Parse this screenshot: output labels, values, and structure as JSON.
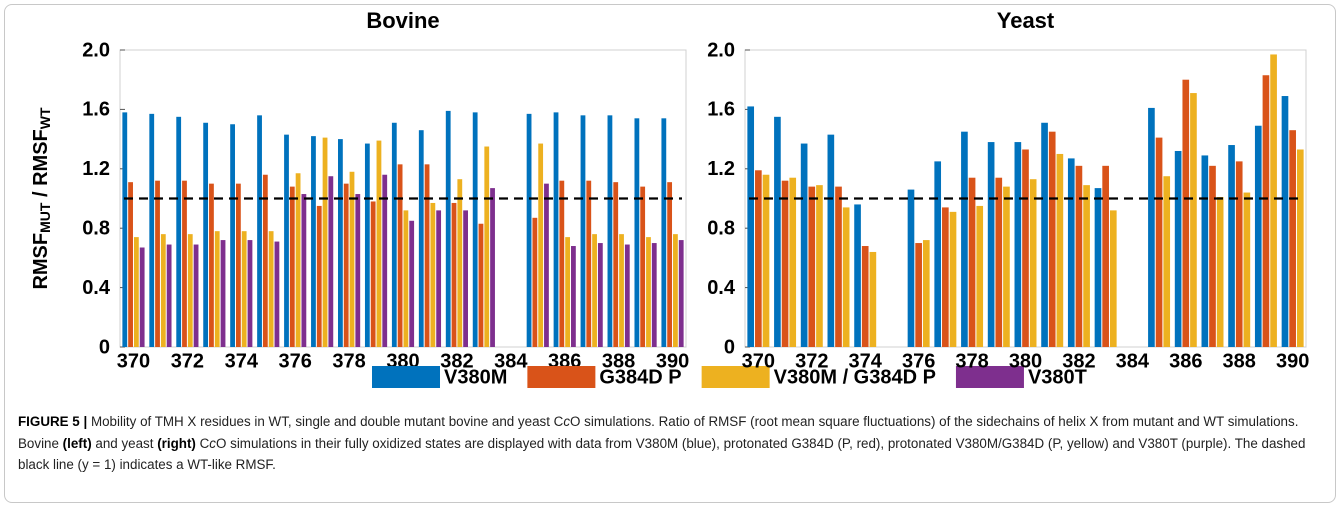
{
  "chart_data": [
    {
      "type": "bar",
      "title": "Bovine",
      "ylabel": [
        "RMSF",
        "MUT",
        " / RMSF",
        "WT"
      ],
      "categories": [
        370,
        null,
        372,
        null,
        374,
        null,
        376,
        null,
        378,
        null,
        380,
        null,
        382,
        null,
        384,
        null,
        386,
        null,
        388,
        null,
        390
      ],
      "series": [
        {
          "name": "V380M",
          "color": "#0072BD",
          "values": [
            1.58,
            1.57,
            1.55,
            1.51,
            1.5,
            1.56,
            1.43,
            1.42,
            1.4,
            1.37,
            1.51,
            1.46,
            1.59,
            1.58,
            null,
            1.57,
            1.58,
            1.56,
            1.56,
            1.54,
            1.54
          ]
        },
        {
          "name": "G384D P",
          "color": "#D95319",
          "values": [
            1.11,
            1.12,
            1.12,
            1.1,
            1.1,
            1.16,
            1.08,
            0.95,
            1.1,
            0.98,
            1.23,
            1.23,
            0.97,
            0.83,
            null,
            0.87,
            1.12,
            1.12,
            1.11,
            1.08,
            1.11
          ]
        },
        {
          "name": "V380M / G384D P",
          "color": "#EDB120",
          "values": [
            0.74,
            0.76,
            0.76,
            0.78,
            0.78,
            0.78,
            1.17,
            1.41,
            1.18,
            1.39,
            0.92,
            0.97,
            1.13,
            1.35,
            null,
            1.37,
            0.74,
            0.76,
            0.76,
            0.74,
            0.76
          ]
        },
        {
          "name": "V380T",
          "color": "#7E2F8E",
          "values": [
            0.67,
            0.69,
            0.69,
            0.72,
            0.72,
            0.71,
            1.03,
            1.15,
            1.03,
            1.16,
            0.85,
            0.92,
            0.92,
            1.07,
            null,
            1.1,
            0.68,
            0.7,
            0.69,
            0.7,
            0.72
          ]
        }
      ],
      "ylim": [
        0,
        2
      ],
      "yticks": [
        0,
        0.4,
        0.8,
        1.2,
        1.6,
        {
          "value": 2,
          "label": "2.0"
        }
      ],
      "reference_line": 1,
      "legend": "bottom"
    },
    {
      "type": "bar",
      "title": "Yeast",
      "categories": [
        370,
        null,
        372,
        null,
        374,
        null,
        376,
        null,
        378,
        null,
        380,
        null,
        382,
        null,
        384,
        null,
        386,
        null,
        388,
        null,
        390
      ],
      "series": [
        {
          "color": "#0072BD",
          "values": [
            1.62,
            1.55,
            1.37,
            1.43,
            0.96,
            null,
            1.06,
            1.25,
            1.45,
            1.38,
            1.38,
            1.51,
            1.27,
            1.07,
            null,
            1.61,
            1.32,
            1.29,
            1.36,
            1.49,
            1.69
          ]
        },
        {
          "color": "#D95319",
          "values": [
            1.19,
            1.12,
            1.08,
            1.08,
            0.68,
            null,
            0.7,
            0.94,
            1.14,
            1.14,
            1.33,
            1.45,
            1.22,
            1.22,
            null,
            1.41,
            1.8,
            1.22,
            1.25,
            1.83,
            1.46
          ]
        },
        {
          "color": "#EDB120",
          "values": [
            1.16,
            1.14,
            1.09,
            0.94,
            0.64,
            null,
            0.72,
            0.91,
            0.95,
            1.08,
            1.13,
            1.3,
            1.09,
            0.92,
            null,
            1.15,
            1.71,
            1.01,
            1.04,
            1.97,
            1.33
          ]
        }
      ],
      "ylim": [
        0,
        2
      ],
      "yticks": [
        0,
        0.4,
        0.8,
        1.2,
        1.6,
        {
          "value": 2,
          "label": "2.0"
        }
      ],
      "reference_line": 1
    }
  ],
  "caption": [
    {
      "text": "FIGURE 5 | ",
      "style": "bold"
    },
    {
      "text": "Mobility of TMH X residues in WT, single and double mutant bovine and yeast C"
    },
    {
      "text": "c",
      "style": "italic"
    },
    {
      "text": "O simulations. Ratio of RMSF (root mean square fluctuations) of the sidechains of helix X from mutant and WT simulations. Bovine "
    },
    {
      "text": "(left)",
      "style": "bold"
    },
    {
      "text": " and yeast "
    },
    {
      "text": "(right)",
      "style": "bold"
    },
    {
      "text": " C"
    },
    {
      "text": "c",
      "style": "italic"
    },
    {
      "text": "O simulations in their fully oxidized states are displayed with data from V380M (blue), protonated G384D (P, red), protonated V380M/G384D (P, yellow) and V380T (purple). The dashed black line (y = 1) indicates a WT-like RMSF."
    }
  ]
}
